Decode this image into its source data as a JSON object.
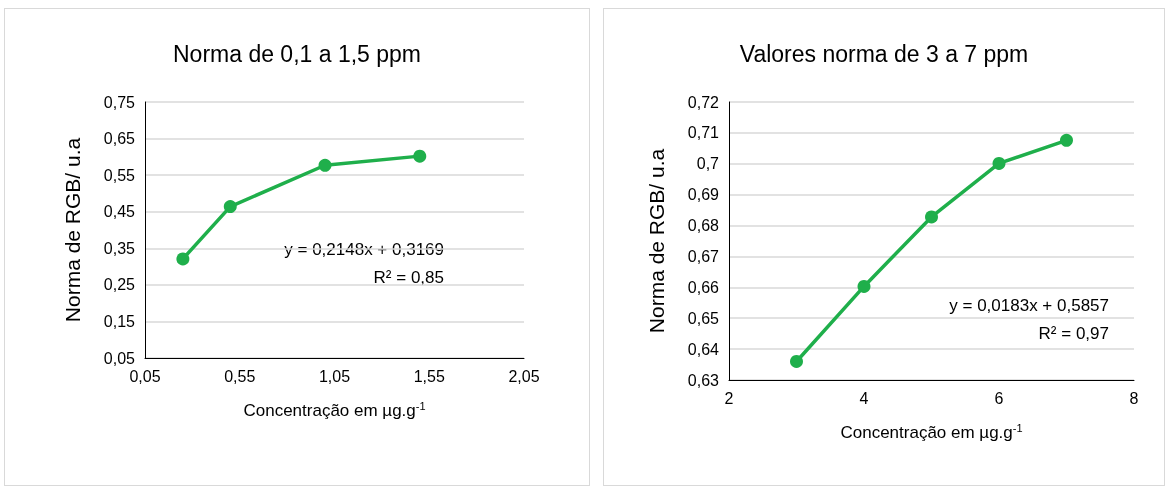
{
  "chart_data": [
    {
      "type": "line",
      "title": "Norma de 0,1 a 1,5 ppm",
      "xlabel": "Concentração em µg.g$^{-1}$",
      "ylabel": "Norma de RGB/ u.a",
      "x": [
        0.25,
        0.5,
        1.0,
        1.5
      ],
      "series": [
        {
          "color": "#1faf4b",
          "values": [
            0.321,
            0.464,
            0.577,
            0.602
          ]
        }
      ],
      "xlim": [
        0.05,
        2.05
      ],
      "xticks": [
        {
          "value": 0.05,
          "label": "0,05"
        },
        {
          "value": 0.55,
          "label": "0,55"
        },
        {
          "value": 1.05,
          "label": "1,05"
        },
        {
          "value": 1.55,
          "label": "1,55"
        },
        {
          "value": 2.05,
          "label": "2,05"
        }
      ],
      "ylim": [
        0.05,
        0.75
      ],
      "yticks": [
        {
          "value": 0.05,
          "label": "0,05"
        },
        {
          "value": 0.15,
          "label": "0,15"
        },
        {
          "value": 0.25,
          "label": "0,25"
        },
        {
          "value": 0.35,
          "label": "0,35"
        },
        {
          "value": 0.45,
          "label": "0,45"
        },
        {
          "value": 0.55,
          "label": "0,55"
        },
        {
          "value": 0.65,
          "label": "0,65"
        },
        {
          "value": 0.75,
          "label": "0,75"
        }
      ],
      "grid": "y",
      "marker": "circle",
      "line_style": "solid",
      "annotations": [
        "y = 0,2148x + 0,3169",
        "R² = 0,85"
      ]
    },
    {
      "type": "line",
      "title": "Valores norma de 3 a 7 ppm",
      "xlabel": "Concentração em µg.g$^{-1}$",
      "ylabel": "Norma de RGB/ u.a",
      "x": [
        3,
        4,
        5,
        6,
        7
      ],
      "series": [
        {
          "color": "#1faf4b",
          "values": [
            0.636,
            0.6603,
            0.6828,
            0.7001,
            0.7076
          ]
        }
      ],
      "xlim": [
        2,
        8
      ],
      "xticks": [
        2,
        4,
        6,
        8
      ],
      "ylim": [
        0.63,
        0.72
      ],
      "yticks": [
        {
          "value": 0.63,
          "label": "0,63"
        },
        {
          "value": 0.64,
          "label": "0,64"
        },
        {
          "value": 0.65,
          "label": "0,65"
        },
        {
          "value": 0.66,
          "label": "0,66"
        },
        {
          "value": 0.67,
          "label": "0,67"
        },
        {
          "value": 0.68,
          "label": "0,68"
        },
        {
          "value": 0.69,
          "label": "0,69"
        },
        {
          "value": 0.7,
          "label": "0,7"
        },
        {
          "value": 0.71,
          "label": "0,71"
        },
        {
          "value": 0.72,
          "label": "0,72"
        }
      ],
      "grid": "y",
      "marker": "circle",
      "line_style": "solid",
      "annotations": [
        "y = 0,0183x + 0,5857",
        "R² = 0,97"
      ]
    }
  ]
}
